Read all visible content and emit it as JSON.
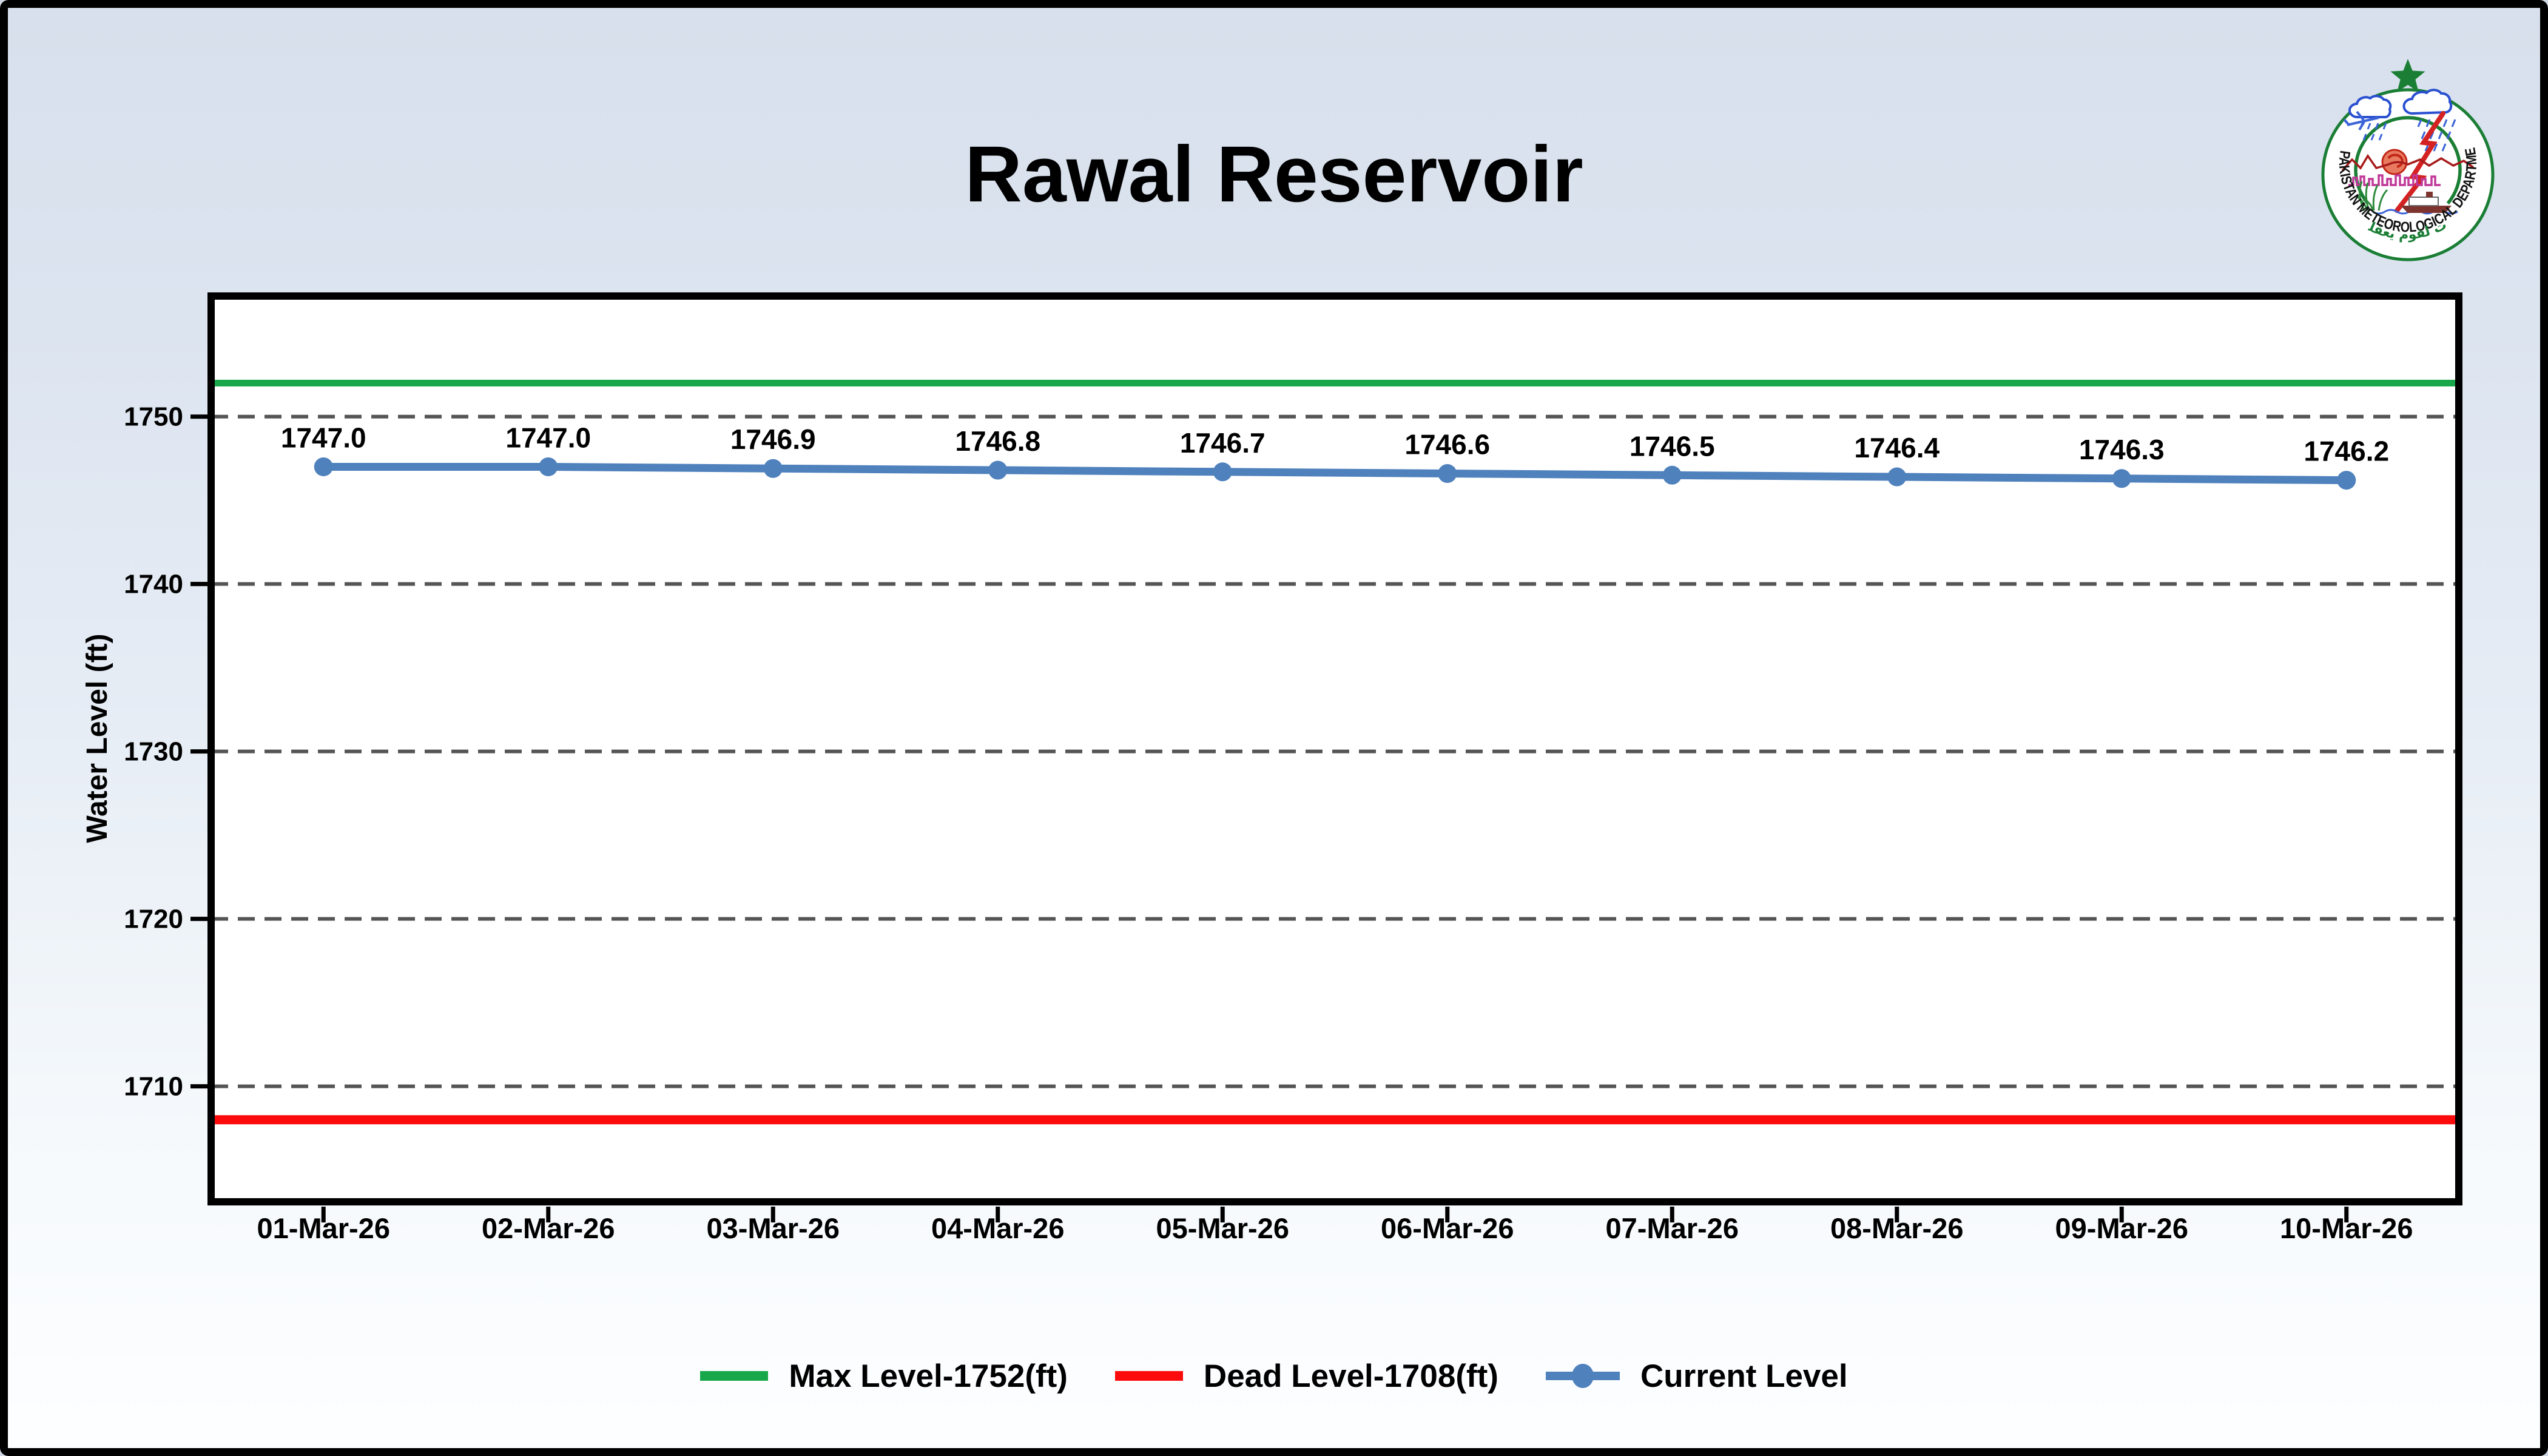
{
  "title": "Rawal Reservoir",
  "logo": {
    "ring_text": "PAKISTAN METEOROLOGICAL DEPARTMENT",
    "arabic_text": "لآيات لقوم يعقلون"
  },
  "chart_data": {
    "type": "line",
    "title": "Rawal Reservoir",
    "xlabel": "",
    "ylabel": "Water Level (ft)",
    "categories": [
      "01-Mar-26",
      "02-Mar-26",
      "03-Mar-26",
      "04-Mar-26",
      "05-Mar-26",
      "06-Mar-26",
      "07-Mar-26",
      "08-Mar-26",
      "09-Mar-26",
      "10-Mar-26"
    ],
    "series": [
      {
        "name": "Current Level",
        "color": "#4f81bd",
        "values": [
          1747.0,
          1747.0,
          1746.9,
          1746.8,
          1746.7,
          1746.6,
          1746.5,
          1746.4,
          1746.3,
          1746.2
        ],
        "marker": "circle"
      }
    ],
    "data_labels": [
      "1747.0",
      "1747.0",
      "1746.9",
      "1746.8",
      "1746.7",
      "1746.6",
      "1746.5",
      "1746.4",
      "1746.3",
      "1746.2"
    ],
    "reference_lines": [
      {
        "label": "Max Level-1752(ft)",
        "value": 1752,
        "color": "#18a84b"
      },
      {
        "label": "Dead Level-1708(ft)",
        "value": 1708,
        "color": "#fb0b0b"
      }
    ],
    "yticks": [
      1710,
      1720,
      1730,
      1740,
      1750
    ],
    "ylim": [
      1703.1,
      1757.2
    ],
    "grid": {
      "horizontal": true,
      "style": "dashed",
      "color": "#555555"
    },
    "legend_position": "bottom"
  },
  "legend": {
    "items": [
      {
        "label": "Max Level-1752(ft)",
        "color": "#18a84b",
        "marker": "line"
      },
      {
        "label": "Dead Level-1708(ft)",
        "color": "#fb0b0b",
        "marker": "line"
      },
      {
        "label": "Current Level",
        "color": "#4f81bd",
        "marker": "line-circle"
      }
    ]
  },
  "colors": {
    "background_top": "#d7e0ec",
    "background_bottom": "#fdfeff",
    "plot_background": "#ffffff",
    "frame": "#000000",
    "axis": "#000000",
    "grid": "#555555",
    "text": "#000000",
    "logo_green": "#1a7e35",
    "logo_blue": "#3b63d8",
    "logo_red": "#d42222"
  }
}
